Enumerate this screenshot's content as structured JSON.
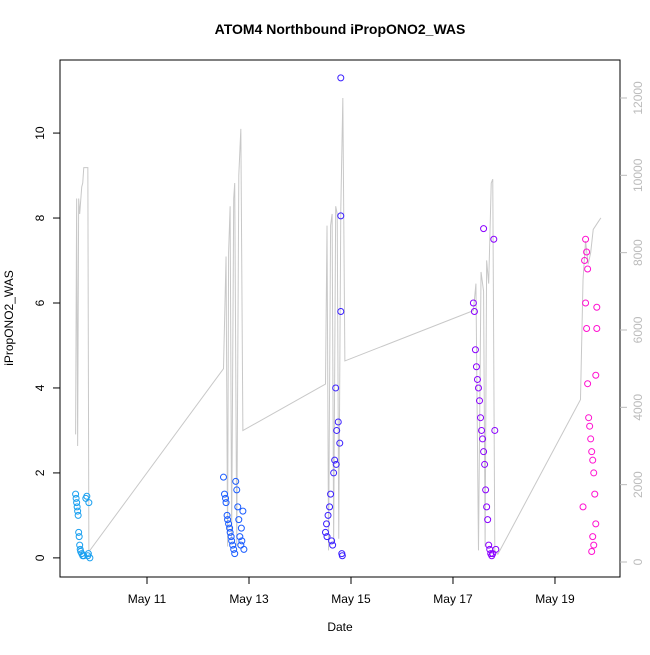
{
  "chart_data": {
    "type": "scatter",
    "title": "ATOM4 Northbound iPropONO2_WAS",
    "x_label": "Date",
    "y_label": "iPropONO2_WAS",
    "xlim": [
      9.294,
      20.275
    ],
    "ylim": [
      -0.45,
      11.72
    ],
    "y2lim": [
      -388,
      12982
    ],
    "xticks": [
      {
        "value": 11,
        "label": "May 11"
      },
      {
        "value": 13,
        "label": "May 13"
      },
      {
        "value": 15,
        "label": "May 15"
      },
      {
        "value": 17,
        "label": "May 17"
      },
      {
        "value": 19,
        "label": "May 19"
      }
    ],
    "yticks": [
      0,
      2,
      4,
      6,
      8,
      10
    ],
    "y2ticks": [
      0,
      2000,
      4000,
      6000,
      8000,
      10000,
      12000
    ],
    "series": [
      {
        "color": "#1aa0f0",
        "x": [
          9.6,
          9.61,
          9.62,
          9.63,
          9.64,
          9.65,
          9.66,
          9.67,
          9.68,
          9.69,
          9.7,
          9.72,
          9.74,
          9.76,
          9.8,
          9.82,
          9.84,
          9.85,
          9.86,
          9.88
        ],
        "values": [
          1.5,
          1.4,
          1.3,
          1.2,
          1.1,
          1.0,
          0.6,
          0.5,
          0.3,
          0.2,
          0.15,
          0.1,
          0.05,
          0.05,
          1.4,
          1.45,
          0.05,
          0.1,
          1.3,
          0.0
        ]
      },
      {
        "color": "#1a5cff",
        "x": [
          12.5,
          12.52,
          12.54,
          12.55,
          12.57,
          12.58,
          12.6,
          12.62,
          12.63,
          12.65,
          12.66,
          12.68,
          12.7,
          12.72,
          12.74,
          12.76,
          12.78,
          12.8,
          12.82,
          12.84,
          12.85,
          12.86,
          12.88,
          12.9
        ],
        "values": [
          1.9,
          1.5,
          1.4,
          1.3,
          1.0,
          0.9,
          0.8,
          0.7,
          0.6,
          0.5,
          0.4,
          0.3,
          0.2,
          0.1,
          1.8,
          1.6,
          1.2,
          0.9,
          0.5,
          0.3,
          0.7,
          0.4,
          1.1,
          0.2
        ]
      },
      {
        "color": "#3a1fff",
        "x": [
          14.8,
          14.8,
          14.8,
          14.7,
          14.75,
          14.72,
          14.78,
          14.68,
          14.71,
          14.66,
          14.6,
          14.58,
          14.55,
          14.52,
          14.5,
          14.53,
          14.62,
          14.64,
          14.82,
          14.83
        ],
        "values": [
          11.3,
          8.05,
          5.8,
          4.0,
          3.2,
          3.0,
          2.7,
          2.3,
          2.2,
          2.0,
          1.5,
          1.2,
          1.0,
          0.8,
          0.6,
          0.5,
          0.4,
          0.3,
          0.1,
          0.05
        ]
      },
      {
        "color": "#8a00ff",
        "x": [
          17.4,
          17.42,
          17.44,
          17.46,
          17.48,
          17.5,
          17.52,
          17.54,
          17.56,
          17.58,
          17.6,
          17.62,
          17.64,
          17.66,
          17.68,
          17.6,
          17.8,
          17.82,
          17.7,
          17.72,
          17.74,
          17.76,
          17.78,
          17.84
        ],
        "values": [
          6.0,
          5.8,
          4.9,
          4.5,
          4.2,
          4.0,
          3.7,
          3.3,
          3.0,
          2.8,
          2.5,
          2.2,
          1.6,
          1.2,
          0.9,
          7.75,
          7.5,
          3.0,
          0.3,
          0.2,
          0.1,
          0.05,
          0.1,
          0.2
        ]
      },
      {
        "color": "#ff10d0",
        "x": [
          19.6,
          19.62,
          19.58,
          19.64,
          19.6,
          19.82,
          19.62,
          19.82,
          19.8,
          19.64,
          19.66,
          19.68,
          19.7,
          19.72,
          19.74,
          19.76,
          19.78,
          19.55,
          19.8,
          19.74,
          19.76,
          19.72
        ],
        "values": [
          7.5,
          7.2,
          7.0,
          6.8,
          6.0,
          5.9,
          5.4,
          5.4,
          4.3,
          4.1,
          3.3,
          3.1,
          2.8,
          2.5,
          2.3,
          2.0,
          1.5,
          1.2,
          0.8,
          0.5,
          0.3,
          0.15
        ]
      },
      {
        "type": "line",
        "axis": "y2",
        "color": "#c8c8c8",
        "x": [
          9.6,
          9.62,
          9.64,
          9.66,
          9.68,
          9.72,
          9.74,
          9.76,
          9.8,
          9.84,
          9.86,
          9.88,
          12.5,
          12.55,
          12.58,
          12.6,
          12.63,
          12.66,
          12.7,
          12.72,
          12.76,
          12.8,
          12.84,
          12.88,
          14.5,
          14.53,
          14.56,
          14.6,
          14.63,
          14.66,
          14.7,
          14.73,
          14.76,
          14.8,
          14.84,
          14.88,
          17.4,
          17.45,
          17.5,
          17.55,
          17.6,
          17.63,
          17.66,
          17.7,
          17.75,
          17.78,
          17.82,
          17.88,
          19.5,
          19.55,
          19.6,
          19.65,
          19.7,
          19.75,
          19.8,
          19.85,
          19.9
        ],
        "values": [
          3300,
          9400,
          3000,
          9400,
          9000,
          9700,
          9800,
          10200,
          10200,
          10200,
          300,
          300,
          5000,
          7900,
          400,
          8000,
          9200,
          600,
          9400,
          9800,
          400,
          10000,
          11200,
          3400,
          4600,
          8700,
          300,
          8700,
          9000,
          500,
          9200,
          9000,
          600,
          9100,
          12000,
          5200,
          6500,
          7200,
          300,
          7500,
          7000,
          400,
          7800,
          7200,
          9800,
          9900,
          300,
          200,
          4200,
          7300,
          8300,
          7700,
          8000,
          8600,
          8700,
          8800,
          8900
        ]
      }
    ]
  }
}
